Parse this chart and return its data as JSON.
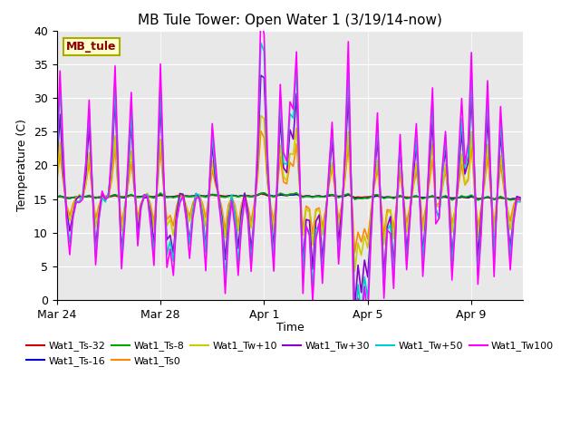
{
  "title": "MB Tule Tower: Open Water 1 (3/19/14-now)",
  "xlabel": "Time",
  "ylabel": "Temperature (C)",
  "ylim": [
    0,
    40
  ],
  "yticks": [
    0,
    5,
    10,
    15,
    20,
    25,
    30,
    35,
    40
  ],
  "background_color": "#e8e8e8",
  "series": [
    {
      "label": "Wat1_Ts-32",
      "color": "#cc0000",
      "lw": 1.2,
      "depth_factor": 0.05
    },
    {
      "label": "Wat1_Ts-16",
      "color": "#0000cc",
      "lw": 1.2,
      "depth_factor": 0.08
    },
    {
      "label": "Wat1_Ts-8",
      "color": "#00aa00",
      "lw": 1.2,
      "depth_factor": 0.12
    },
    {
      "label": "Wat1_Ts0",
      "color": "#ff8800",
      "lw": 1.2,
      "depth_factor": 0.35
    },
    {
      "label": "Wat1_Tw+10",
      "color": "#cccc00",
      "lw": 1.2,
      "depth_factor": 0.45
    },
    {
      "label": "Wat1_Tw+30",
      "color": "#8800cc",
      "lw": 1.2,
      "depth_factor": 0.7
    },
    {
      "label": "Wat1_Tw+50",
      "color": "#00cccc",
      "lw": 1.2,
      "depth_factor": 0.85
    },
    {
      "label": "Wat1_Tw100",
      "color": "#ff00ff",
      "lw": 1.2,
      "depth_factor": 1.0
    }
  ],
  "xtick_labels": [
    "Mar 24",
    "Mar 28",
    "Apr 1",
    "Apr 5",
    "Apr 9"
  ],
  "xtick_days": [
    0,
    4,
    8,
    12,
    16
  ],
  "annotation_text": "MB_tule",
  "title_fontsize": 11,
  "axis_fontsize": 9,
  "legend_fontsize": 8,
  "base_temp": 15.2,
  "n_days": 18,
  "dt": 0.125
}
